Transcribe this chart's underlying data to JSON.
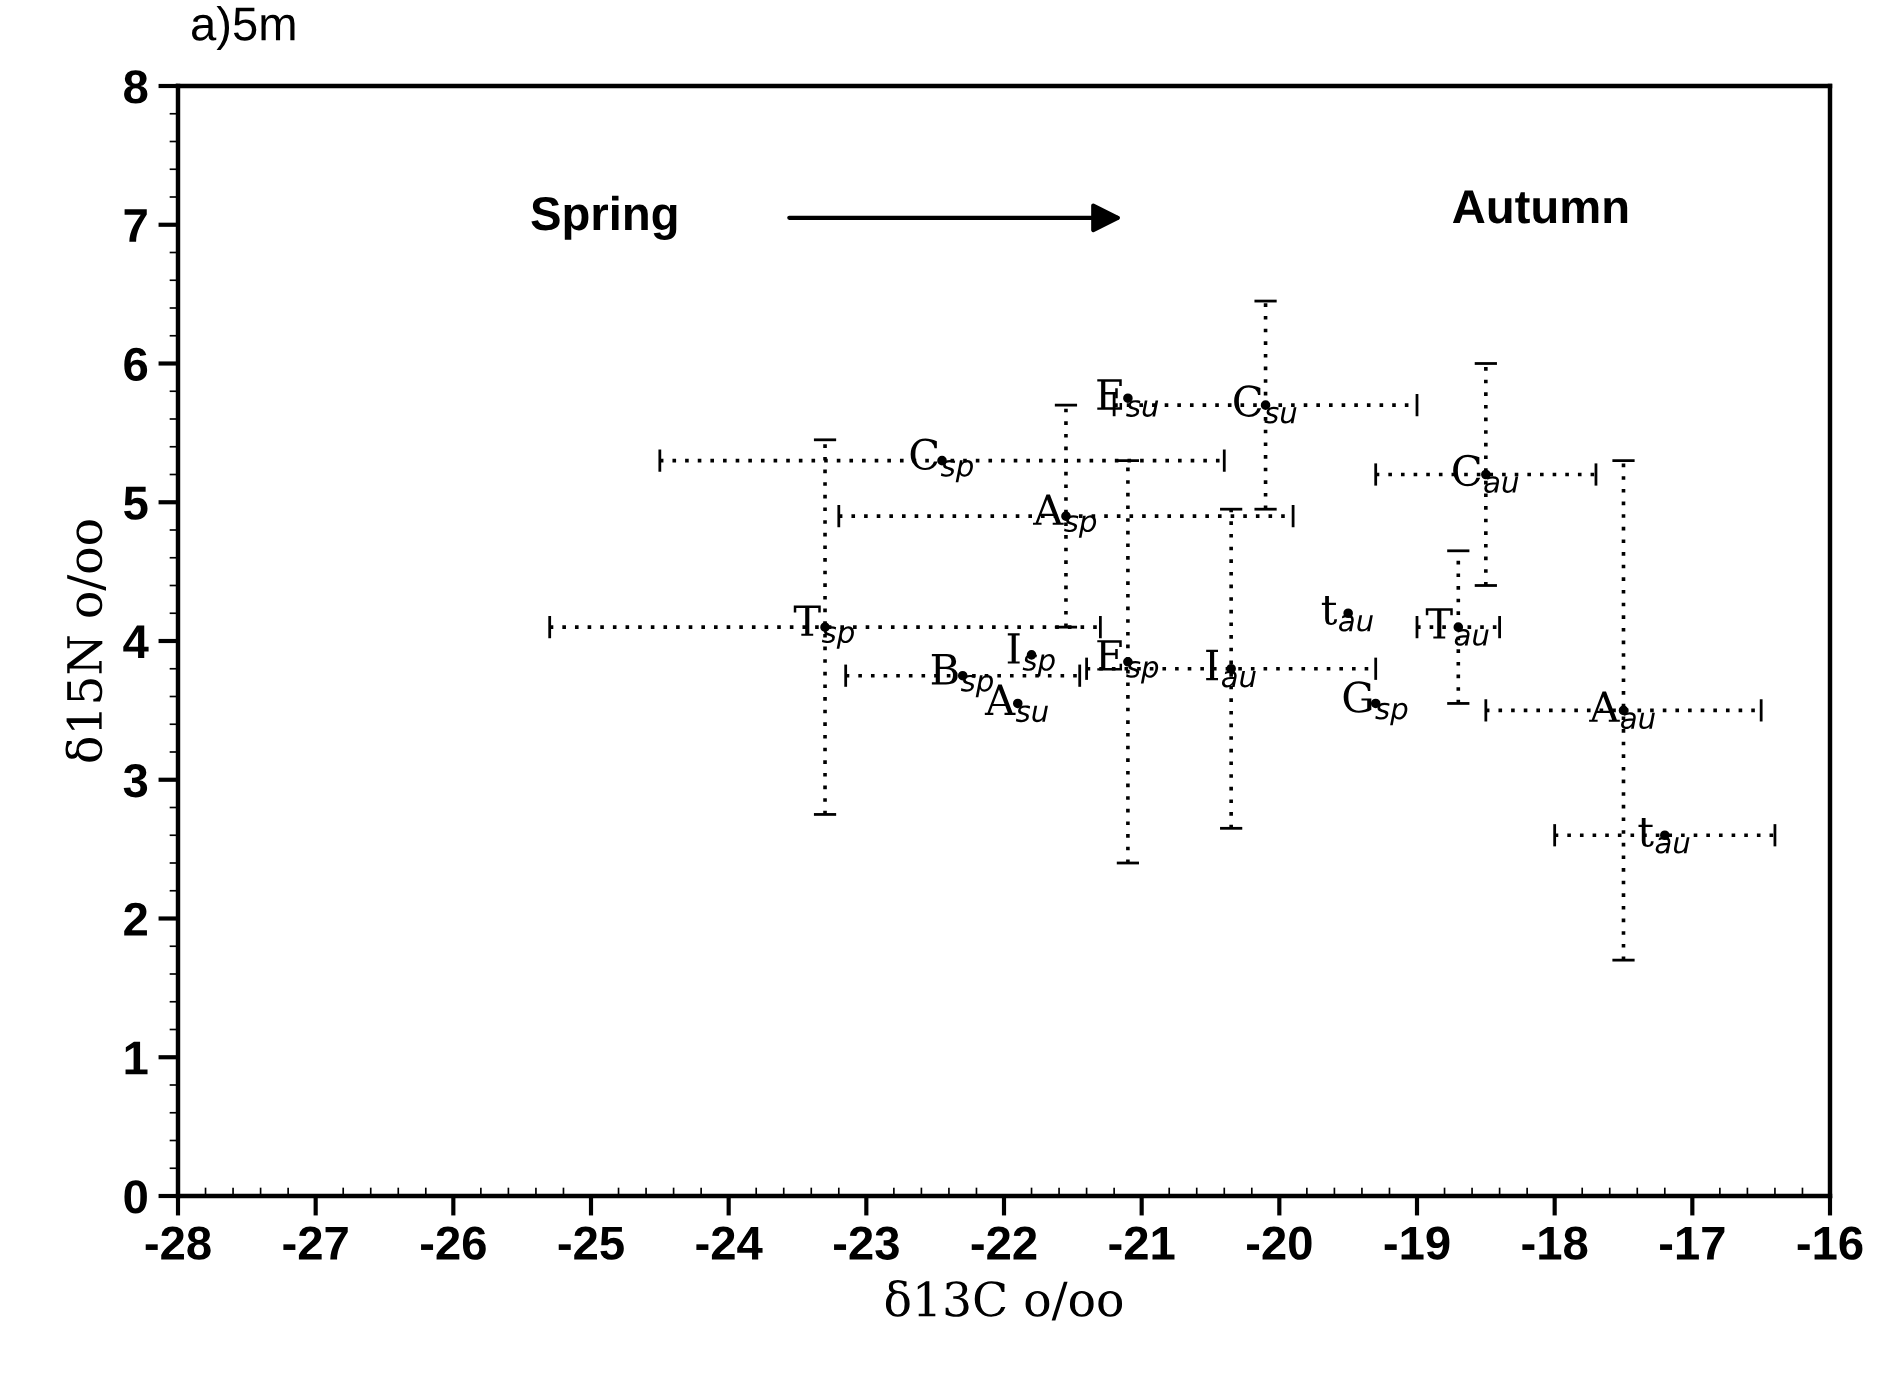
{
  "chart_data": {
    "type": "scatter",
    "title": "a)5m",
    "xlabel": "δ13C o/oo",
    "ylabel": "δ15N o/oo",
    "xlim": [
      -28,
      -16
    ],
    "xticks": [
      -28,
      -27,
      -26,
      -25,
      -24,
      -23,
      -22,
      -21,
      -20,
      -19,
      -18,
      -17,
      -16
    ],
    "ylim": [
      0,
      8
    ],
    "yticks": [
      0,
      1,
      2,
      3,
      4,
      5,
      6,
      7,
      8
    ],
    "grid": false,
    "marker": "circle",
    "annotations": [
      "Spring",
      "Autumn"
    ],
    "series": [
      {
        "color": "#000000",
        "x": [
          -23.3,
          -22.45,
          -21.55,
          -21.1,
          -20.1,
          -18.5,
          -18.7,
          -19.5,
          -17.5,
          -17.2,
          -19.3,
          -20.35,
          -21.1,
          -22.3,
          -21.9,
          -21.8
        ],
        "values": [
          4.1,
          5.3,
          4.9,
          5.75,
          5.7,
          5.2,
          4.1,
          4.2,
          3.5,
          2.6,
          3.55,
          3.8,
          3.85,
          3.75,
          3.55,
          3.9
        ],
        "errors": [
          1.35,
          null,
          0.8,
          null,
          0.75,
          0.8,
          0.55,
          null,
          1.8,
          null,
          null,
          1.15,
          1.45,
          null,
          null,
          null
        ],
        "xerrors": [
          2.0,
          2.05,
          1.65,
          null,
          1.1,
          0.8,
          0.3,
          null,
          1.0,
          0.8,
          null,
          1.05,
          null,
          0.85,
          null,
          null
        ],
        "value_labels": [
          "T$_{sp}$",
          "C$_{sp}$",
          "A$_{sp}$",
          "E$_{su}$",
          "C$_{su}$",
          "C$_{au}$",
          "T$_{au}$",
          "t$_{au}$",
          "A$_{au}$",
          "t$_{au}$",
          "G$_{sp}$",
          "I$_{au}$",
          "E$_{sp}$",
          "B$_{sp}$",
          "A$_{su}$",
          "I$_{sp}$"
        ]
      }
    ]
  }
}
